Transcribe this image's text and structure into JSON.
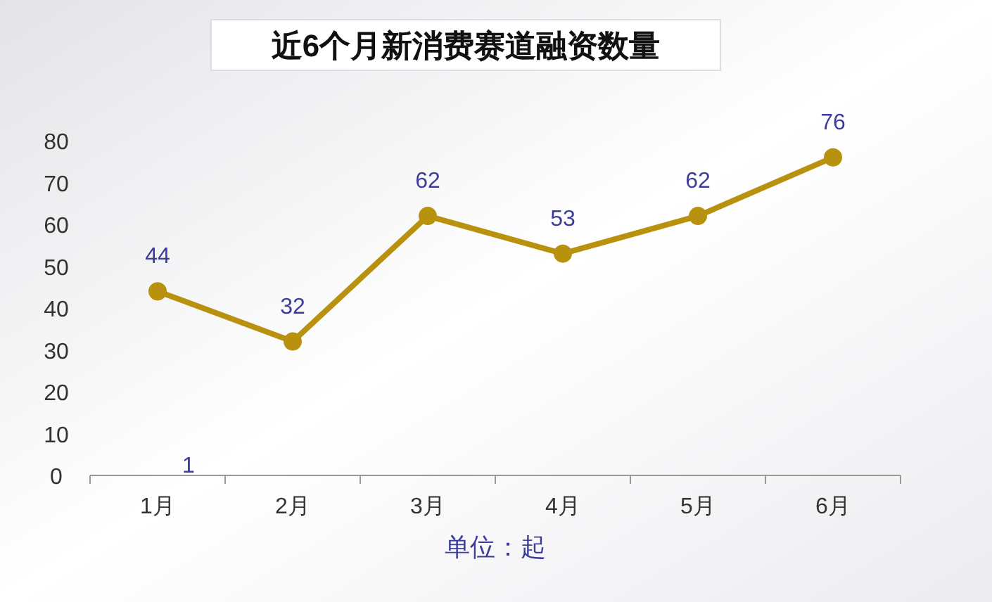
{
  "chart_data": {
    "type": "line",
    "title": "近6个月新消费赛道融资数量",
    "xlabel": "单位：起",
    "categories": [
      "1月",
      "2月",
      "3月",
      "4月",
      "5月",
      "6月"
    ],
    "series": [
      {
        "color": "#b8920f",
        "values": [
          44,
          32,
          62,
          53,
          62,
          76
        ]
      }
    ],
    "ylim": [
      0,
      80
    ],
    "yticks": [
      0,
      10,
      20,
      30,
      40,
      50,
      60,
      70,
      80
    ],
    "marker": "circle",
    "line_style": "solid",
    "data_labels": true,
    "grid": false,
    "annotations": [
      "1"
    ]
  }
}
